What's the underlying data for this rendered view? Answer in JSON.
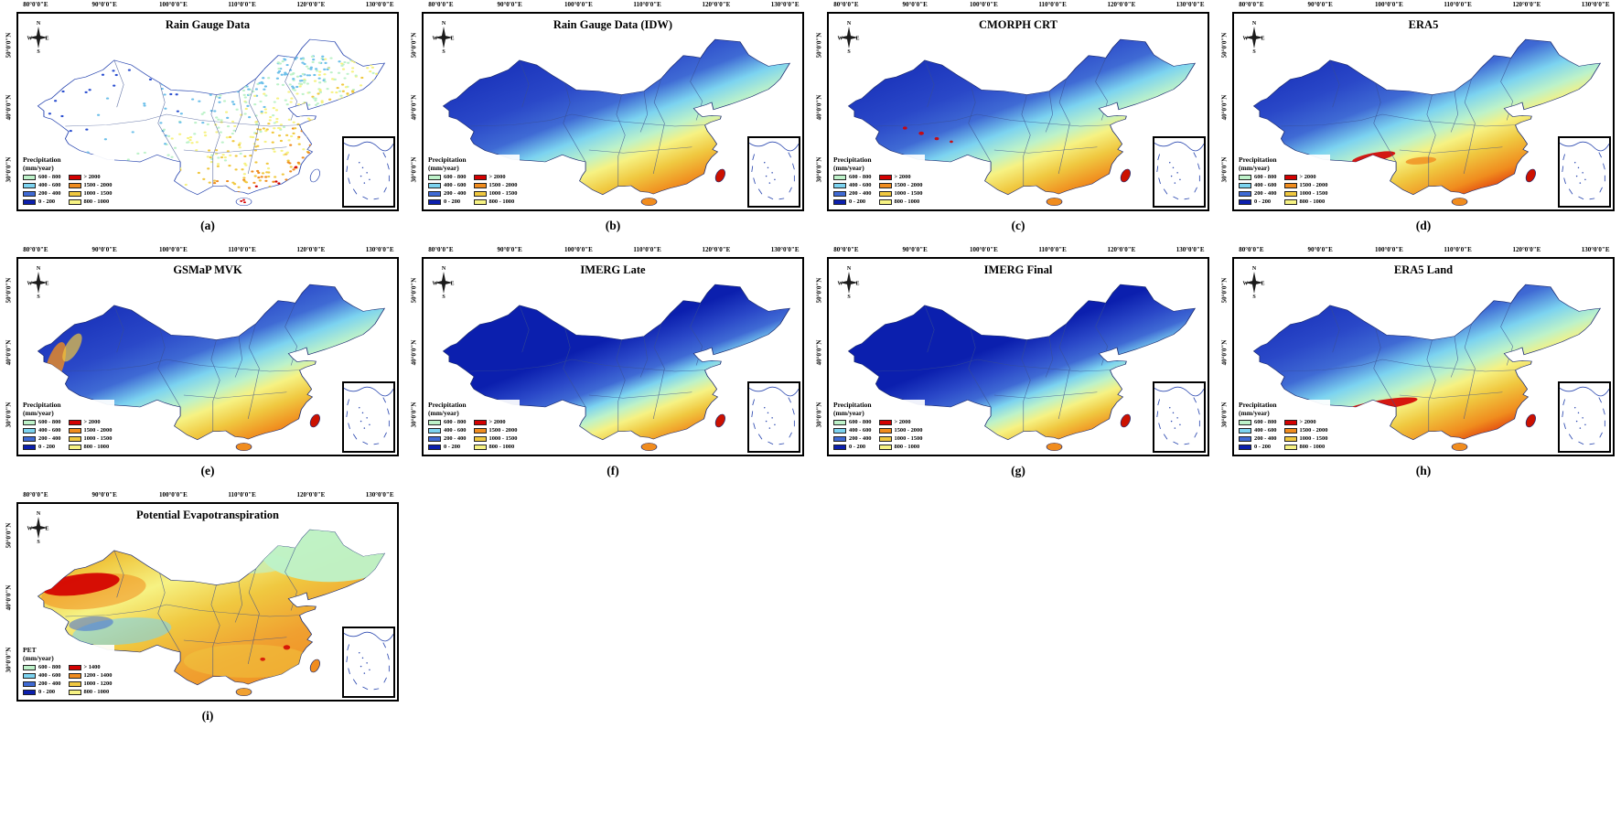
{
  "axes": {
    "lon_ticks": [
      "80°0'0\"E",
      "90°0'0\"E",
      "100°0'0\"E",
      "110°0'0\"E",
      "120°0'0\"E",
      "130°0'0\"E"
    ],
    "lat_ticks": [
      "50°0'0\"N",
      "40°0'0\"N",
      "30°0'0\"N"
    ]
  },
  "compass": {
    "north": "N",
    "east": "E",
    "south": "S",
    "west": "W"
  },
  "legends": {
    "precip": {
      "title": [
        "Precipitation",
        "(mm/year)"
      ],
      "left": [
        {
          "label": "600 - 800",
          "color": "#bdf2c9"
        },
        {
          "label": "400 - 600",
          "color": "#7cd3f0"
        },
        {
          "label": "200 - 400",
          "color": "#3f6ad4"
        },
        {
          "label": "0 - 200",
          "color": "#0b1fae"
        }
      ],
      "right": [
        {
          "label": "> 2000",
          "color": "#d40000"
        },
        {
          "label": "1500 - 2000",
          "color": "#f08c1e"
        },
        {
          "label": "1000 - 1500",
          "color": "#f0c840"
        },
        {
          "label": "800 - 1000",
          "color": "#f6f283"
        }
      ]
    },
    "pet": {
      "title": [
        "PET",
        "(mm/year)"
      ],
      "left": [
        {
          "label": "600 - 800",
          "color": "#bdf2c9"
        },
        {
          "label": "400 - 600",
          "color": "#7cd3f0"
        },
        {
          "label": "200 - 400",
          "color": "#3f6ad4"
        },
        {
          "label": "0 - 200",
          "color": "#0b1fae"
        }
      ],
      "right": [
        {
          "label": "> 1400",
          "color": "#d40000"
        },
        {
          "label": "1200 - 1400",
          "color": "#f08c1e"
        },
        {
          "label": "1000 - 1200",
          "color": "#f0c840"
        },
        {
          "label": "800 - 1000",
          "color": "#f6f283"
        }
      ]
    }
  },
  "panels": [
    {
      "id": "a",
      "label": "(a)",
      "title": "Rain Gauge Data",
      "legend": "precip",
      "map_style": "station-dots"
    },
    {
      "id": "b",
      "label": "(b)",
      "title": "Rain Gauge Data (IDW)",
      "legend": "precip",
      "map_style": "raster"
    },
    {
      "id": "c",
      "label": "(c)",
      "title": "CMORPH CRT",
      "legend": "precip",
      "map_style": "raster"
    },
    {
      "id": "d",
      "label": "(d)",
      "title": "ERA5",
      "legend": "precip",
      "map_style": "raster"
    },
    {
      "id": "e",
      "label": "(e)",
      "title": "GSMaP MVK",
      "legend": "precip",
      "map_style": "raster"
    },
    {
      "id": "f",
      "label": "(f)",
      "title": "IMERG Late",
      "legend": "precip",
      "map_style": "raster"
    },
    {
      "id": "g",
      "label": "(g)",
      "title": "IMERG Final",
      "legend": "precip",
      "map_style": "raster"
    },
    {
      "id": "h",
      "label": "(h)",
      "title": "ERA5 Land",
      "legend": "precip",
      "map_style": "raster"
    },
    {
      "id": "i",
      "label": "(i)",
      "title": "Potential Evapotranspiration",
      "legend": "pet",
      "map_style": "pet-raster"
    }
  ]
}
